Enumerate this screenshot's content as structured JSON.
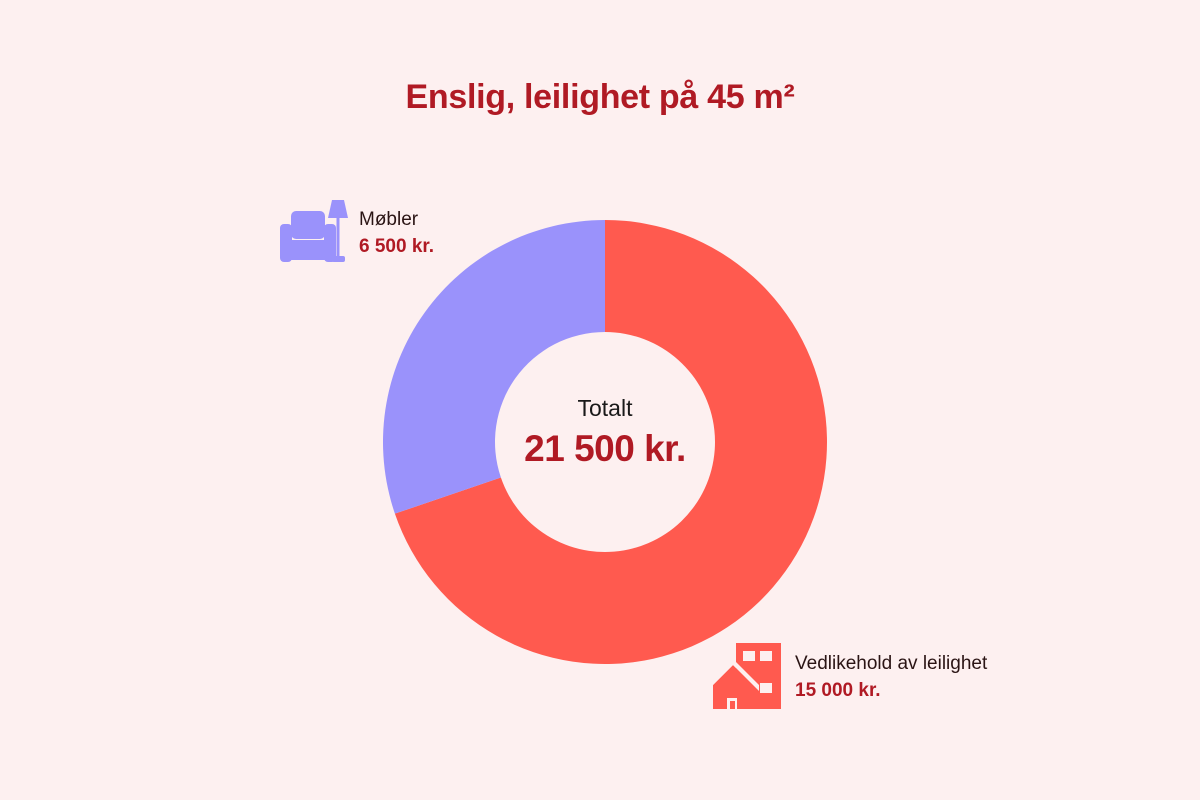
{
  "title": "Enslig, leilighet på 45 m²",
  "center": {
    "label": "Totalt",
    "value": "21 500 kr."
  },
  "legend": [
    {
      "name": "Møbler",
      "amount": "6 500 kr.",
      "icon": "armchair-lamp-icon",
      "color": "#9a92fb"
    },
    {
      "name": "Vedlikehold av leilighet",
      "amount": "15 000 kr.",
      "icon": "house-building-icon",
      "color": "#ff5a4f"
    }
  ],
  "colors": {
    "background": "#fdf0f0",
    "accent": "#b01a24",
    "mobler": "#9a92fb",
    "vedlikehold": "#ff5a4f"
  },
  "chart_data": {
    "type": "pie",
    "title": "Enslig, leilighet på 45 m²",
    "donut": true,
    "center_label": "Totalt",
    "center_value": "21 500 kr.",
    "total": 21500,
    "categories": [
      "Møbler",
      "Vedlikehold av leilighet"
    ],
    "values": [
      6500,
      15000
    ],
    "value_labels": [
      "6 500 kr.",
      "15 000 kr."
    ],
    "colors": [
      "#9a92fb",
      "#ff5a4f"
    ],
    "unit": "kr.",
    "legend_position": "outside-labels"
  }
}
